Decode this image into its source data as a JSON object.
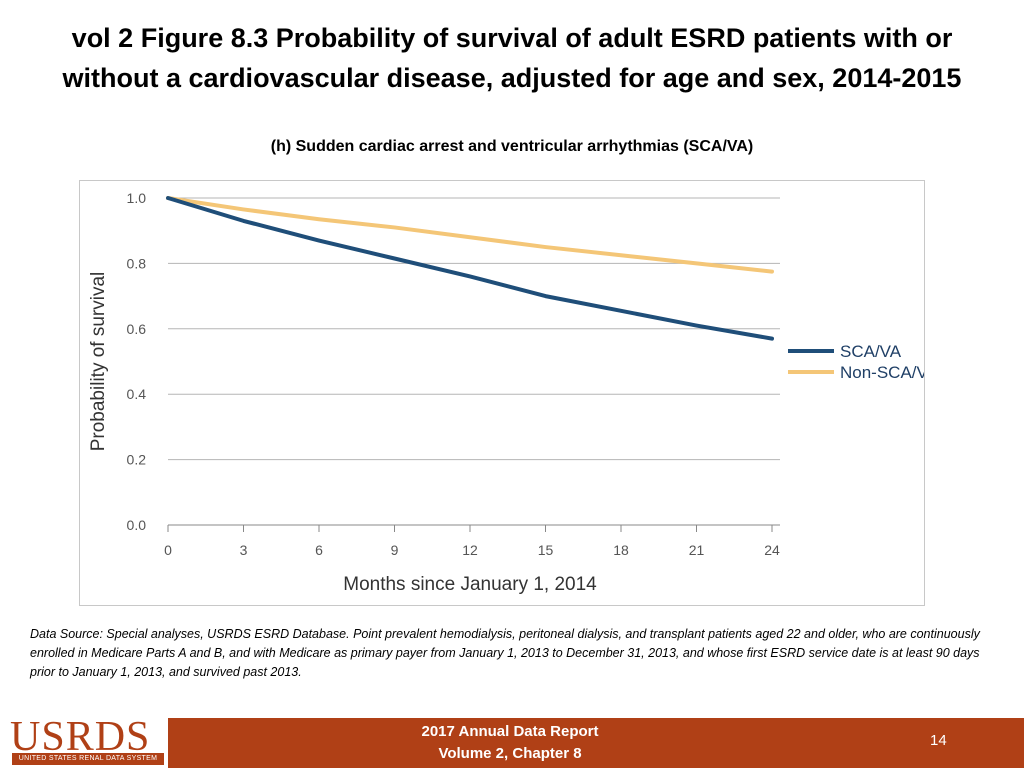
{
  "title_line1": "vol 2 Figure 8.3 Probability of survival of adult ESRD patients with or",
  "title_line2": "without a cardiovascular disease, adjusted for age and sex, 2014-2015",
  "chart_data": {
    "type": "line",
    "title": "(h) Sudden cardiac arrest and ventricular arrhythmias (SCA/VA)",
    "xlabel": "Months since January 1, 2014",
    "ylabel": "Probability of survival",
    "xlim": [
      0,
      24
    ],
    "ylim": [
      0.0,
      1.0
    ],
    "x_ticks": [
      "0",
      "3",
      "6",
      "9",
      "12",
      "15",
      "18",
      "21",
      "24"
    ],
    "y_ticks": [
      "0.0",
      "0.2",
      "0.4",
      "0.6",
      "0.8",
      "1.0"
    ],
    "grid": true,
    "legend_position": "right",
    "x": [
      0,
      3,
      6,
      9,
      12,
      15,
      18,
      21,
      24
    ],
    "series": [
      {
        "name": "SCA/VA",
        "color": "#1f4e79",
        "values": [
          1.0,
          0.93,
          0.87,
          0.815,
          0.76,
          0.7,
          0.655,
          0.61,
          0.57
        ]
      },
      {
        "name": "Non-SCA/VA",
        "color": "#f4c677",
        "values": [
          1.0,
          0.965,
          0.935,
          0.91,
          0.88,
          0.85,
          0.825,
          0.8,
          0.775
        ]
      }
    ]
  },
  "source_text": "Data Source: Special analyses, USRDS ESRD Database. Point prevalent hemodialysis, peritoneal dialysis, and transplant patients aged 22 and older, who are continuously enrolled in Medicare Parts A and B, and with Medicare as primary payer from January 1, 2013 to December 31, 2013, and whose first ESRD service date is at least 90 days prior to January 1, 2013, and survived past 2013.",
  "footer": {
    "logo_text": "USRDS",
    "logo_subtext": "UNITED STATES RENAL DATA SYSTEM",
    "report_line1": "2017 Annual Data Report",
    "report_line2": "Volume 2, Chapter 8",
    "page_number": "14"
  }
}
